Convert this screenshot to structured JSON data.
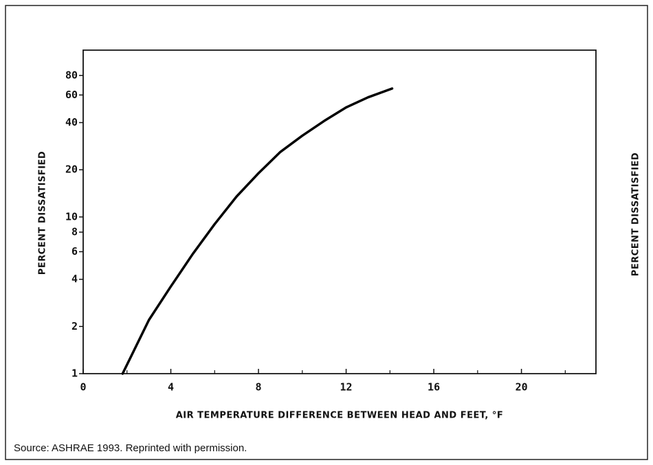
{
  "chart_data": {
    "type": "line",
    "xlabel": "AIR TEMPERATURE DIFFERENCE BETWEEN HEAD AND FEET, °F",
    "ylabel": "PERCENT DISSATISFIED",
    "right_ylabel": "PERCENT DISSATISFIED",
    "source": "Source:  ASHRAE 1993.  Reprinted with permission.",
    "x": [
      1.8,
      3,
      4,
      5,
      6,
      7,
      8,
      9,
      10,
      11,
      12,
      13,
      14.1
    ],
    "series": [
      {
        "name": "Percent dissatisfied",
        "color": "#000000",
        "values": [
          1,
          2.2,
          3.6,
          5.8,
          9,
          13.5,
          19,
          26,
          33,
          41,
          50,
          58,
          66
        ]
      }
    ],
    "xlim": [
      0,
      23.4
    ],
    "xticks": [
      0,
      4,
      8,
      12,
      16,
      20
    ],
    "x_minor_ticks": [
      2,
      6,
      10,
      14,
      18,
      22
    ],
    "ylim": [
      1,
      116
    ],
    "yticks": [
      1,
      2,
      4,
      6,
      8,
      10,
      20,
      40,
      60,
      80
    ],
    "y_log_scale": true
  }
}
